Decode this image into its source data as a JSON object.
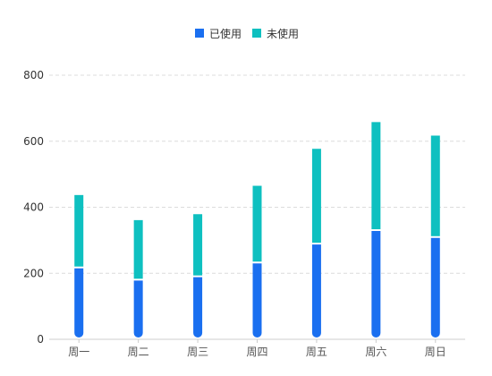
{
  "chart_data": {
    "type": "bar",
    "stacked": true,
    "categories": [
      "周一",
      "周二",
      "周三",
      "周四",
      "周五",
      "周六",
      "周日"
    ],
    "series": [
      {
        "name": "已使用",
        "color": "#1a6ff0",
        "values": [
          215,
          178,
          188,
          230,
          287,
          328,
          307
        ]
      },
      {
        "name": "未使用",
        "color": "#0ec0c0",
        "values": [
          222,
          183,
          191,
          235,
          290,
          330,
          310
        ]
      }
    ],
    "yticks": [
      0,
      200,
      400,
      600,
      800
    ],
    "ylim": [
      0,
      800
    ],
    "grid": true,
    "legend_position": "top-center"
  }
}
